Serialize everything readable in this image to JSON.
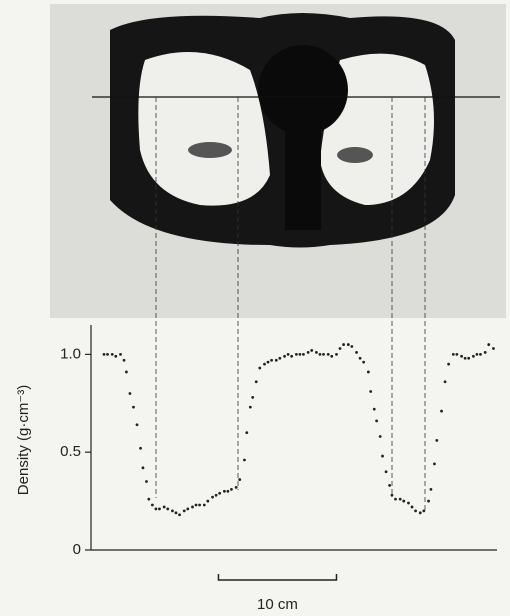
{
  "chart_data": {
    "type": "scatter",
    "ylabel": "Density (g·cm⁻³)",
    "x": [
      0,
      0.3,
      0.7,
      1.0,
      1.4,
      1.7,
      1.9,
      2.2,
      2.5,
      2.8,
      3.1,
      3.3,
      3.6,
      3.8,
      4.1,
      4.4,
      4.7,
      5.1,
      5.4,
      5.8,
      6.1,
      6.4,
      6.8,
      7.1,
      7.5,
      7.8,
      8.1,
      8.5,
      8.8,
      9.2,
      9.5,
      9.8,
      10.2,
      10.5,
      10.8,
      11.2,
      11.5,
      11.9,
      12.1,
      12.4,
      12.6,
      12.9,
      13.2,
      13.6,
      13.9,
      14.2,
      14.6,
      14.9,
      15.3,
      15.6,
      15.9,
      16.3,
      16.6,
      16.9,
      17.3,
      17.6,
      18.0,
      18.3,
      18.6,
      19.0,
      19.3,
      19.7,
      20.0,
      20.3,
      20.7,
      21.0,
      21.4,
      21.7,
      22.0,
      22.4,
      22.6,
      22.9,
      23.1,
      23.4,
      23.6,
      23.9,
      24.2,
      24.4,
      24.7,
      25.1,
      25.4,
      25.8,
      26.1,
      26.4,
      26.8,
      27.1,
      27.5,
      27.7,
      28.0,
      28.2,
      28.6,
      28.9,
      29.2,
      29.6,
      29.9,
      30.3,
      30.6,
      30.9,
      31.3,
      31.6,
      31.9,
      32.3,
      32.6,
      33.0
    ],
    "values": [
      1.0,
      1.0,
      1.0,
      0.99,
      1.0,
      0.97,
      0.91,
      0.8,
      0.73,
      0.64,
      0.52,
      0.42,
      0.35,
      0.26,
      0.23,
      0.21,
      0.21,
      0.22,
      0.21,
      0.2,
      0.19,
      0.18,
      0.2,
      0.21,
      0.22,
      0.23,
      0.23,
      0.23,
      0.25,
      0.27,
      0.28,
      0.29,
      0.3,
      0.3,
      0.31,
      0.32,
      0.36,
      0.46,
      0.6,
      0.73,
      0.78,
      0.86,
      0.93,
      0.95,
      0.96,
      0.97,
      0.97,
      0.98,
      0.99,
      1.0,
      0.99,
      1.0,
      1.0,
      1.0,
      1.01,
      1.02,
      1.01,
      1.0,
      1.0,
      1.0,
      0.99,
      1.0,
      1.03,
      1.05,
      1.05,
      1.04,
      1.01,
      0.98,
      0.96,
      0.91,
      0.81,
      0.72,
      0.66,
      0.58,
      0.48,
      0.4,
      0.33,
      0.28,
      0.26,
      0.26,
      0.25,
      0.24,
      0.22,
      0.2,
      0.19,
      0.2,
      0.25,
      0.31,
      0.44,
      0.56,
      0.71,
      0.86,
      0.95,
      1.0,
      1.0,
      0.99,
      0.98,
      0.98,
      0.99,
      1.0,
      1.0,
      1.01,
      1.05,
      1.03
    ],
    "color": "#222222",
    "xlim": [
      -1.1,
      33.3
    ],
    "ylim": [
      0,
      1.15
    ],
    "yticks": [
      0,
      0.5,
      {
        "value": 1,
        "label": "1.0"
      }
    ],
    "scale_bar": {
      "label": "10 cm",
      "x": [
        9.7,
        19.7
      ]
    }
  }
}
